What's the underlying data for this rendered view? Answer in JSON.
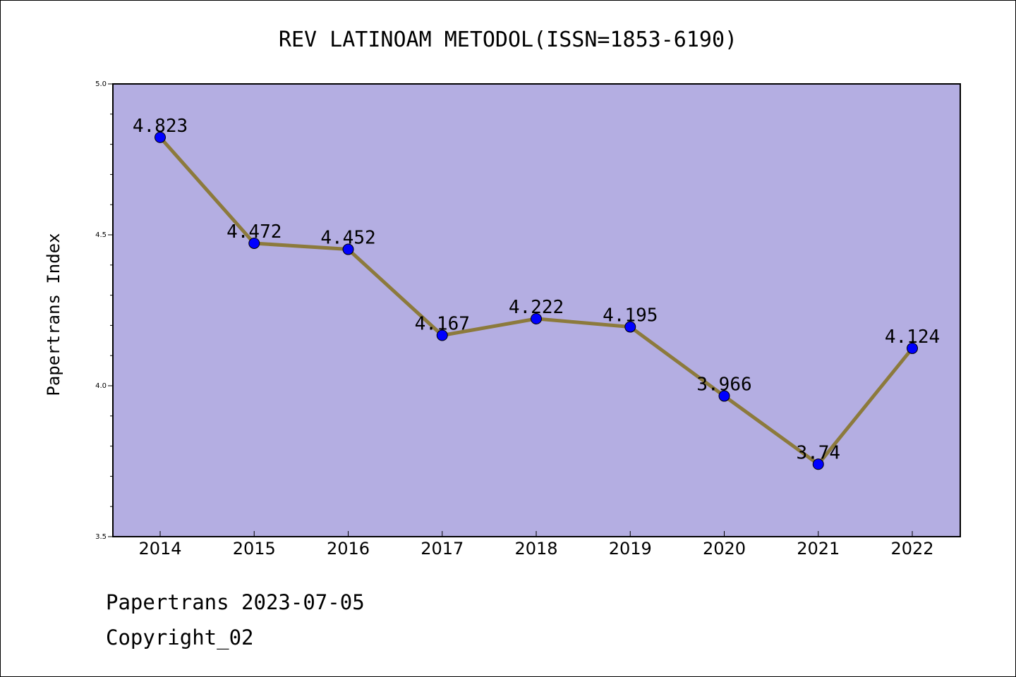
{
  "chart_data": {
    "type": "line",
    "title": "REV LATINOAM METODOL(ISSN=1853-6190)",
    "xlabel": "",
    "ylabel": "Papertrans Index",
    "categories": [
      "2014",
      "2015",
      "2016",
      "2017",
      "2018",
      "2019",
      "2020",
      "2021",
      "2022"
    ],
    "values": [
      4.823,
      4.472,
      4.452,
      4.167,
      4.222,
      4.195,
      3.966,
      3.74,
      4.124
    ],
    "data_labels": [
      "4.823",
      "4.472",
      "4.452",
      "4.167",
      "4.222",
      "4.195",
      "3.966",
      "3.74",
      "4.124"
    ],
    "ylim": [
      3.5,
      5.0
    ],
    "yticks": [
      "3.5",
      "4.0",
      "4.5",
      "5.0"
    ],
    "grid": false,
    "colors": {
      "plot_background": "#b4aee2",
      "line": "#8c7a3c",
      "marker": "#0000ff"
    }
  },
  "footer": {
    "line1": "Papertrans 2023-07-05",
    "line2": "Copyright_02"
  }
}
